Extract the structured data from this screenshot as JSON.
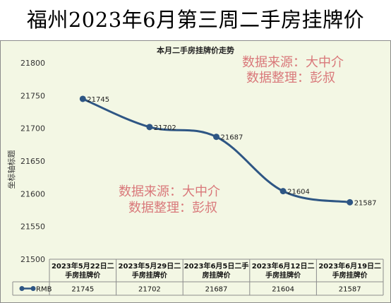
{
  "header": {
    "title": "福州2023年6月第三周二手房挂牌价"
  },
  "watermarks": [
    {
      "line1": "数据来源：大中介",
      "line2": "数据整理：彭叔"
    },
    {
      "line1": "数据来源：大中介",
      "line2": "数据整理：彭叔"
    }
  ],
  "colors": {
    "line": "#2e5684",
    "marker": "#2e5684",
    "plot_background": "#f3f7e4",
    "watermark": "#d9787a"
  },
  "chart_data": {
    "type": "line",
    "title": "本月二手房挂牌价走势",
    "ylabel": "坐标轴标题",
    "xlabel": "",
    "ylim": [
      21500,
      21800
    ],
    "yticks": [
      21500,
      21550,
      21600,
      21650,
      21700,
      21750,
      21800
    ],
    "categories": [
      [
        "2023年5月22日二",
        "手房挂牌价"
      ],
      [
        "2023年5月29日二",
        "手房挂牌价"
      ],
      [
        "2023年6月5日二手",
        "房挂牌价"
      ],
      [
        "2023年6月12日二",
        "手房挂牌价"
      ],
      [
        "2023年6月19日二",
        "手房挂牌价"
      ]
    ],
    "series": [
      {
        "name": "RMB",
        "values": [
          21745,
          21702,
          21687,
          21604,
          21587
        ]
      }
    ],
    "data_labels": [
      "21745",
      "21702",
      "21687",
      "21604",
      "21587"
    ],
    "grid": false,
    "legend": "data-table",
    "smooth": true
  }
}
